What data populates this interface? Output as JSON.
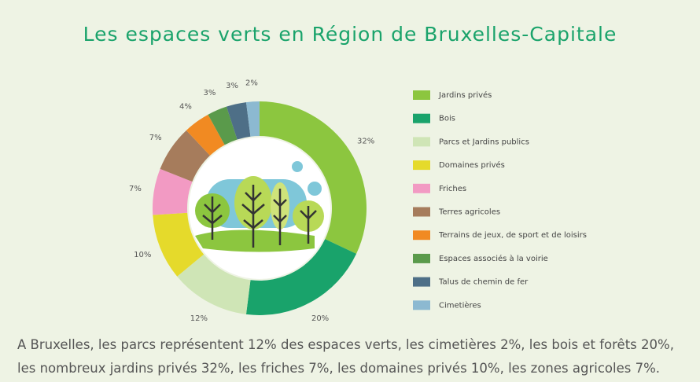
{
  "chart_data": {
    "type": "pie",
    "title": "Les espaces verts en Région de Bruxelles-Capitale",
    "categories": [
      "Jardins privés",
      "Bois",
      "Parcs et Jardins publics",
      "Domaines privés",
      "Friches",
      "Terres agricoles",
      "Terrains de jeux, de sport et de loisirs",
      "Espaces associés à la voirie",
      "Talus de chemin de fer",
      "Cimetières"
    ],
    "values": [
      32,
      20,
      12,
      10,
      7,
      7,
      4,
      3,
      3,
      2
    ],
    "value_labels": [
      "32%",
      "20%",
      "12%",
      "10%",
      "7%",
      "7%",
      "4%",
      "3%",
      "3%",
      "2%"
    ],
    "colors": [
      "#8cc63f",
      "#19a36b",
      "#cfe5b6",
      "#e5da2b",
      "#f29ac3",
      "#a67c5c",
      "#f18a22",
      "#5a9a4b",
      "#4e6f87",
      "#8cb9d1"
    ],
    "caption": [
      "A Bruxelles, les parcs représentent 12% des espaces verts, les cimetières 2%, les bois et forêts 20%,",
      "les nombreux jardins privés 32%, les friches 7%, les domaines privés 10%, les zones agricoles 7%."
    ]
  }
}
